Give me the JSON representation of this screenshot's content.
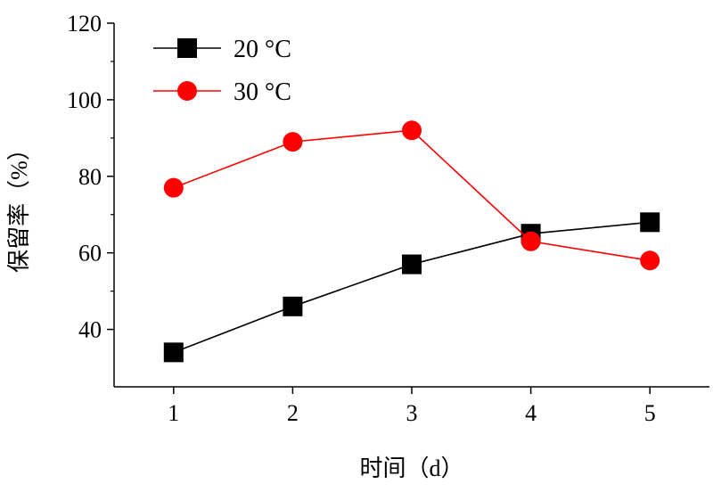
{
  "chart_data": {
    "type": "line",
    "title": "",
    "xlabel": "时间（d）",
    "ylabel": "保留率（%）",
    "x": [
      1,
      2,
      3,
      4,
      5
    ],
    "xlim": [
      0.5,
      5.5
    ],
    "ylim": [
      25,
      120
    ],
    "yticks": [
      40,
      60,
      80,
      100,
      120
    ],
    "xticks": [
      1,
      2,
      3,
      4,
      5
    ],
    "grid": false,
    "legend_position": "top-left",
    "series": [
      {
        "name": "20 °C",
        "color": "#000000",
        "marker": "square",
        "values": [
          34,
          46,
          57,
          65,
          68
        ]
      },
      {
        "name": "30 °C",
        "color": "#ff0000",
        "marker": "circle",
        "values": [
          77,
          89,
          92,
          63,
          58
        ]
      }
    ]
  }
}
